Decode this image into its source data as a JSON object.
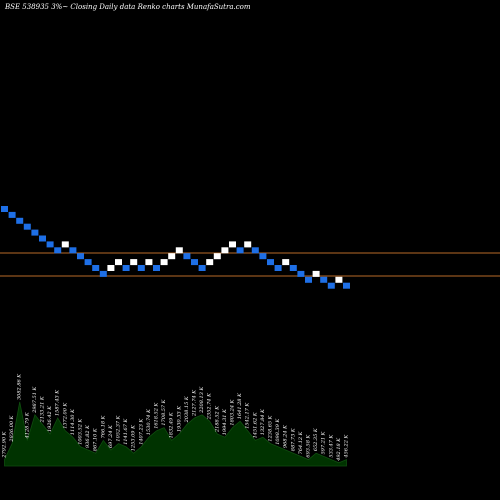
{
  "title": "BSE 538935 3%~  Closing Daily data  Renko  charts MunafaSutra.com",
  "colors": {
    "background": "#000000",
    "up_brick": "#ffffff",
    "down_brick": "#1e6fe6",
    "hline": "#b86a28",
    "volume_fill": "#003300",
    "volume_line": "#0f4d0f"
  },
  "chart_data": {
    "type": "renko",
    "title": "BSE 538935 3%~  Closing Daily data  Renko  charts MunafaSutra.com",
    "bricks": [
      "d",
      "d",
      "d",
      "d",
      "d",
      "d",
      "d",
      "d",
      "u",
      "d",
      "d",
      "d",
      "d",
      "d",
      "u",
      "u",
      "d",
      "u",
      "d",
      "u",
      "d",
      "u",
      "u",
      "u",
      "d",
      "d",
      "d",
      "u",
      "u",
      "u",
      "u",
      "d",
      "u",
      "d",
      "d",
      "d",
      "d",
      "u",
      "d",
      "d",
      "d",
      "u",
      "d",
      "d",
      "u",
      "d"
    ],
    "step": 7,
    "hlines": [
      60,
      36
    ],
    "volumes": [
      2,
      7,
      20,
      8,
      16,
      13,
      10,
      15,
      11,
      9,
      6,
      5,
      4,
      8,
      5,
      7,
      6,
      4,
      6,
      9,
      11,
      12,
      8,
      10,
      13,
      15,
      16,
      14,
      10,
      9,
      12,
      14,
      11,
      8,
      9,
      7,
      6,
      5,
      4,
      3,
      2,
      4,
      3,
      2,
      1,
      2
    ],
    "volume_labels": [
      "2792.90 K",
      "2836.00 K",
      "3082.86 K",
      "4128.79 K",
      "2987.51 K",
      "2133.21 K",
      "1926.42 K",
      "1587.43 K",
      "1372.00 K",
      "1114.30 K",
      "1003.52 K",
      "936.82 K",
      "867.10 K",
      "766.18 K",
      "697.24 K",
      "1052.37 K",
      "1141.67 K",
      "1253.09 K",
      "1407.23 K",
      "1530.74 K",
      "1618.52 K",
      "1708.57 K",
      "1832.49 K",
      "1930.33 K",
      "2038.15 K",
      "2127.74 K",
      "2208.13 K",
      "2352.74 K",
      "2188.52 K",
      "1994.31 K",
      "1803.24 K",
      "1641.28 K",
      "1542.17 K",
      "1451.62 K",
      "1327.84 K",
      "1238.65 K",
      "1098.39 K",
      "968.24 K",
      "887.73 K",
      "764.12 K",
      "693.58 K",
      "652.35 K",
      "597.21 K",
      "533.47 K",
      "492.18 K",
      "456.22 K"
    ]
  }
}
